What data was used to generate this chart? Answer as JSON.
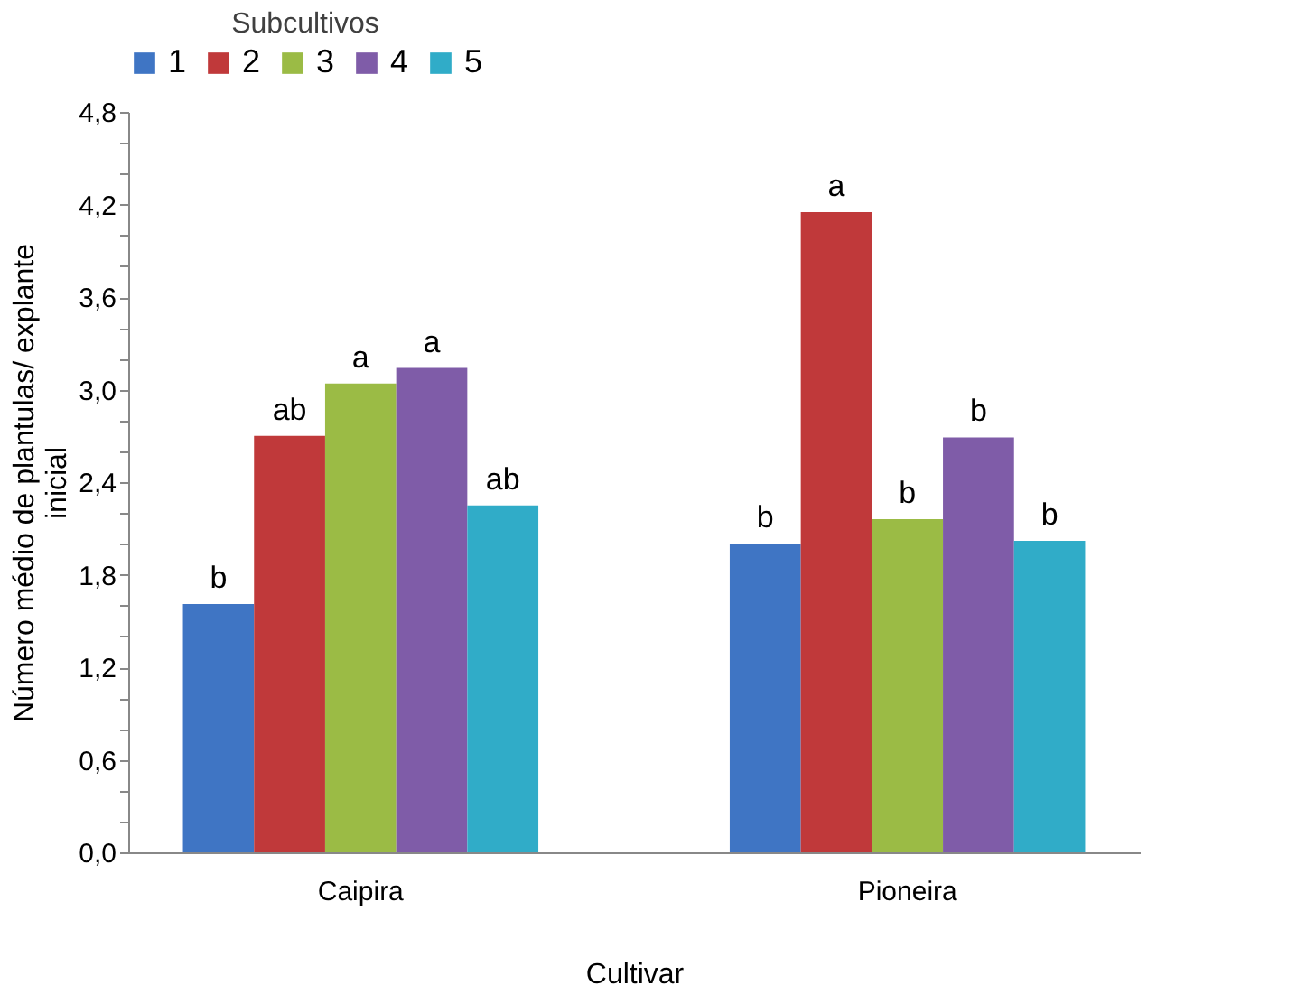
{
  "chart_data": {
    "type": "bar",
    "xlabel": "Cultivar",
    "ylabel": "Número médio de plantulas/ explante inicial",
    "legend_title": "Subcultivos",
    "legend": "top",
    "categories": [
      "Caipira",
      "Pioneira"
    ],
    "series": [
      {
        "name": "1",
        "color": "#3f75c4",
        "values": [
          1.61,
          2.0
        ],
        "value_labels": [
          "b",
          "b"
        ]
      },
      {
        "name": "2",
        "color": "#c0393a",
        "values": [
          2.7,
          4.15
        ],
        "value_labels": [
          "ab",
          "a"
        ]
      },
      {
        "name": "3",
        "color": "#9bbb45",
        "values": [
          3.04,
          2.16
        ],
        "value_labels": [
          "a",
          "b"
        ]
      },
      {
        "name": "4",
        "color": "#7f5ca8",
        "values": [
          3.14,
          2.69
        ],
        "value_labels": [
          "a",
          "b"
        ]
      },
      {
        "name": "5",
        "color": "#30acc8",
        "values": [
          2.25,
          2.02
        ],
        "value_labels": [
          "ab",
          "b"
        ]
      }
    ],
    "ylim": [
      0,
      4.8
    ],
    "yticks": [
      {
        "value": 0,
        "label": "0,0"
      },
      {
        "value": 0.2,
        "label": null
      },
      {
        "value": 0.4,
        "label": null
      },
      {
        "value": 0.6,
        "label": "0,6"
      },
      {
        "value": 0.8,
        "label": null
      },
      {
        "value": 1.0,
        "label": null
      },
      {
        "value": 1.2,
        "label": "1,2"
      },
      {
        "value": 1.4,
        "label": null
      },
      {
        "value": 1.6,
        "label": null
      },
      {
        "value": 1.8,
        "label": "1,8"
      },
      {
        "value": 2.0,
        "label": null
      },
      {
        "value": 2.2,
        "label": null
      },
      {
        "value": 2.4,
        "label": "2,4"
      },
      {
        "value": 2.6,
        "label": null
      },
      {
        "value": 2.8,
        "label": null
      },
      {
        "value": 3.0,
        "label": "3,0"
      },
      {
        "value": 3.2,
        "label": null
      },
      {
        "value": 3.4,
        "label": null
      },
      {
        "value": 3.6,
        "label": "3,6"
      },
      {
        "value": 3.8,
        "label": null
      },
      {
        "value": 4.0,
        "label": null
      },
      {
        "value": 4.2,
        "label": "4,2"
      },
      {
        "value": 4.4,
        "label": null
      },
      {
        "value": 4.6,
        "label": null
      },
      {
        "value": 4.8,
        "label": "4,8"
      }
    ],
    "grid": false
  }
}
